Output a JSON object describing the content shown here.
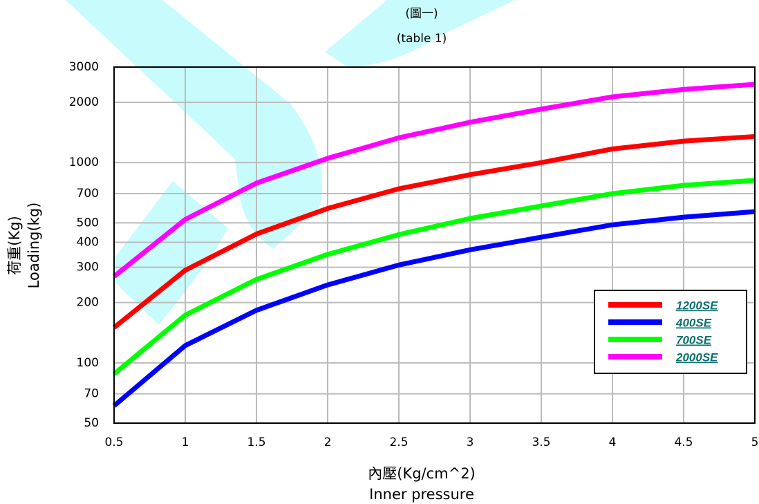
{
  "chart_data": {
    "type": "line",
    "title": "(圖一)",
    "subtitle": "(table 1)",
    "xlabel": [
      "內壓(Kg/cm^2)",
      "Inner pressure"
    ],
    "ylabel": [
      "荷重(Kg)",
      "Loading(kg)"
    ],
    "x": [
      0.5,
      1,
      1.5,
      2,
      2.5,
      3,
      3.5,
      4,
      4.5,
      5
    ],
    "series": [
      {
        "name": "1200SE",
        "color": "#ff0000",
        "values": [
          150,
          290,
          440,
          590,
          740,
          870,
          1000,
          1170,
          1280,
          1350
        ]
      },
      {
        "name": "400SE",
        "color": "#0000ff",
        "values": [
          61,
          122,
          183,
          245,
          308,
          367,
          424,
          489,
          534,
          569
        ]
      },
      {
        "name": "700SE",
        "color": "#00ff00",
        "values": [
          88,
          173,
          261,
          348,
          437,
          526,
          607,
          700,
          770,
          815
        ]
      },
      {
        "name": "2000SE",
        "color": "#ff00ff",
        "values": [
          270,
          520,
          790,
          1050,
          1330,
          1590,
          1850,
          2130,
          2320,
          2460
        ]
      }
    ],
    "xlim": [
      0.5,
      5
    ],
    "xticks": [
      0.5,
      1,
      1.5,
      2,
      2.5,
      3,
      3.5,
      4,
      4.5,
      5
    ],
    "ylim": [
      50,
      3000
    ],
    "yticks": [
      50,
      70,
      100,
      200,
      300,
      400,
      500,
      700,
      1000,
      2000,
      3000
    ],
    "ylog": true,
    "grid": true,
    "legend": "lower-right"
  }
}
